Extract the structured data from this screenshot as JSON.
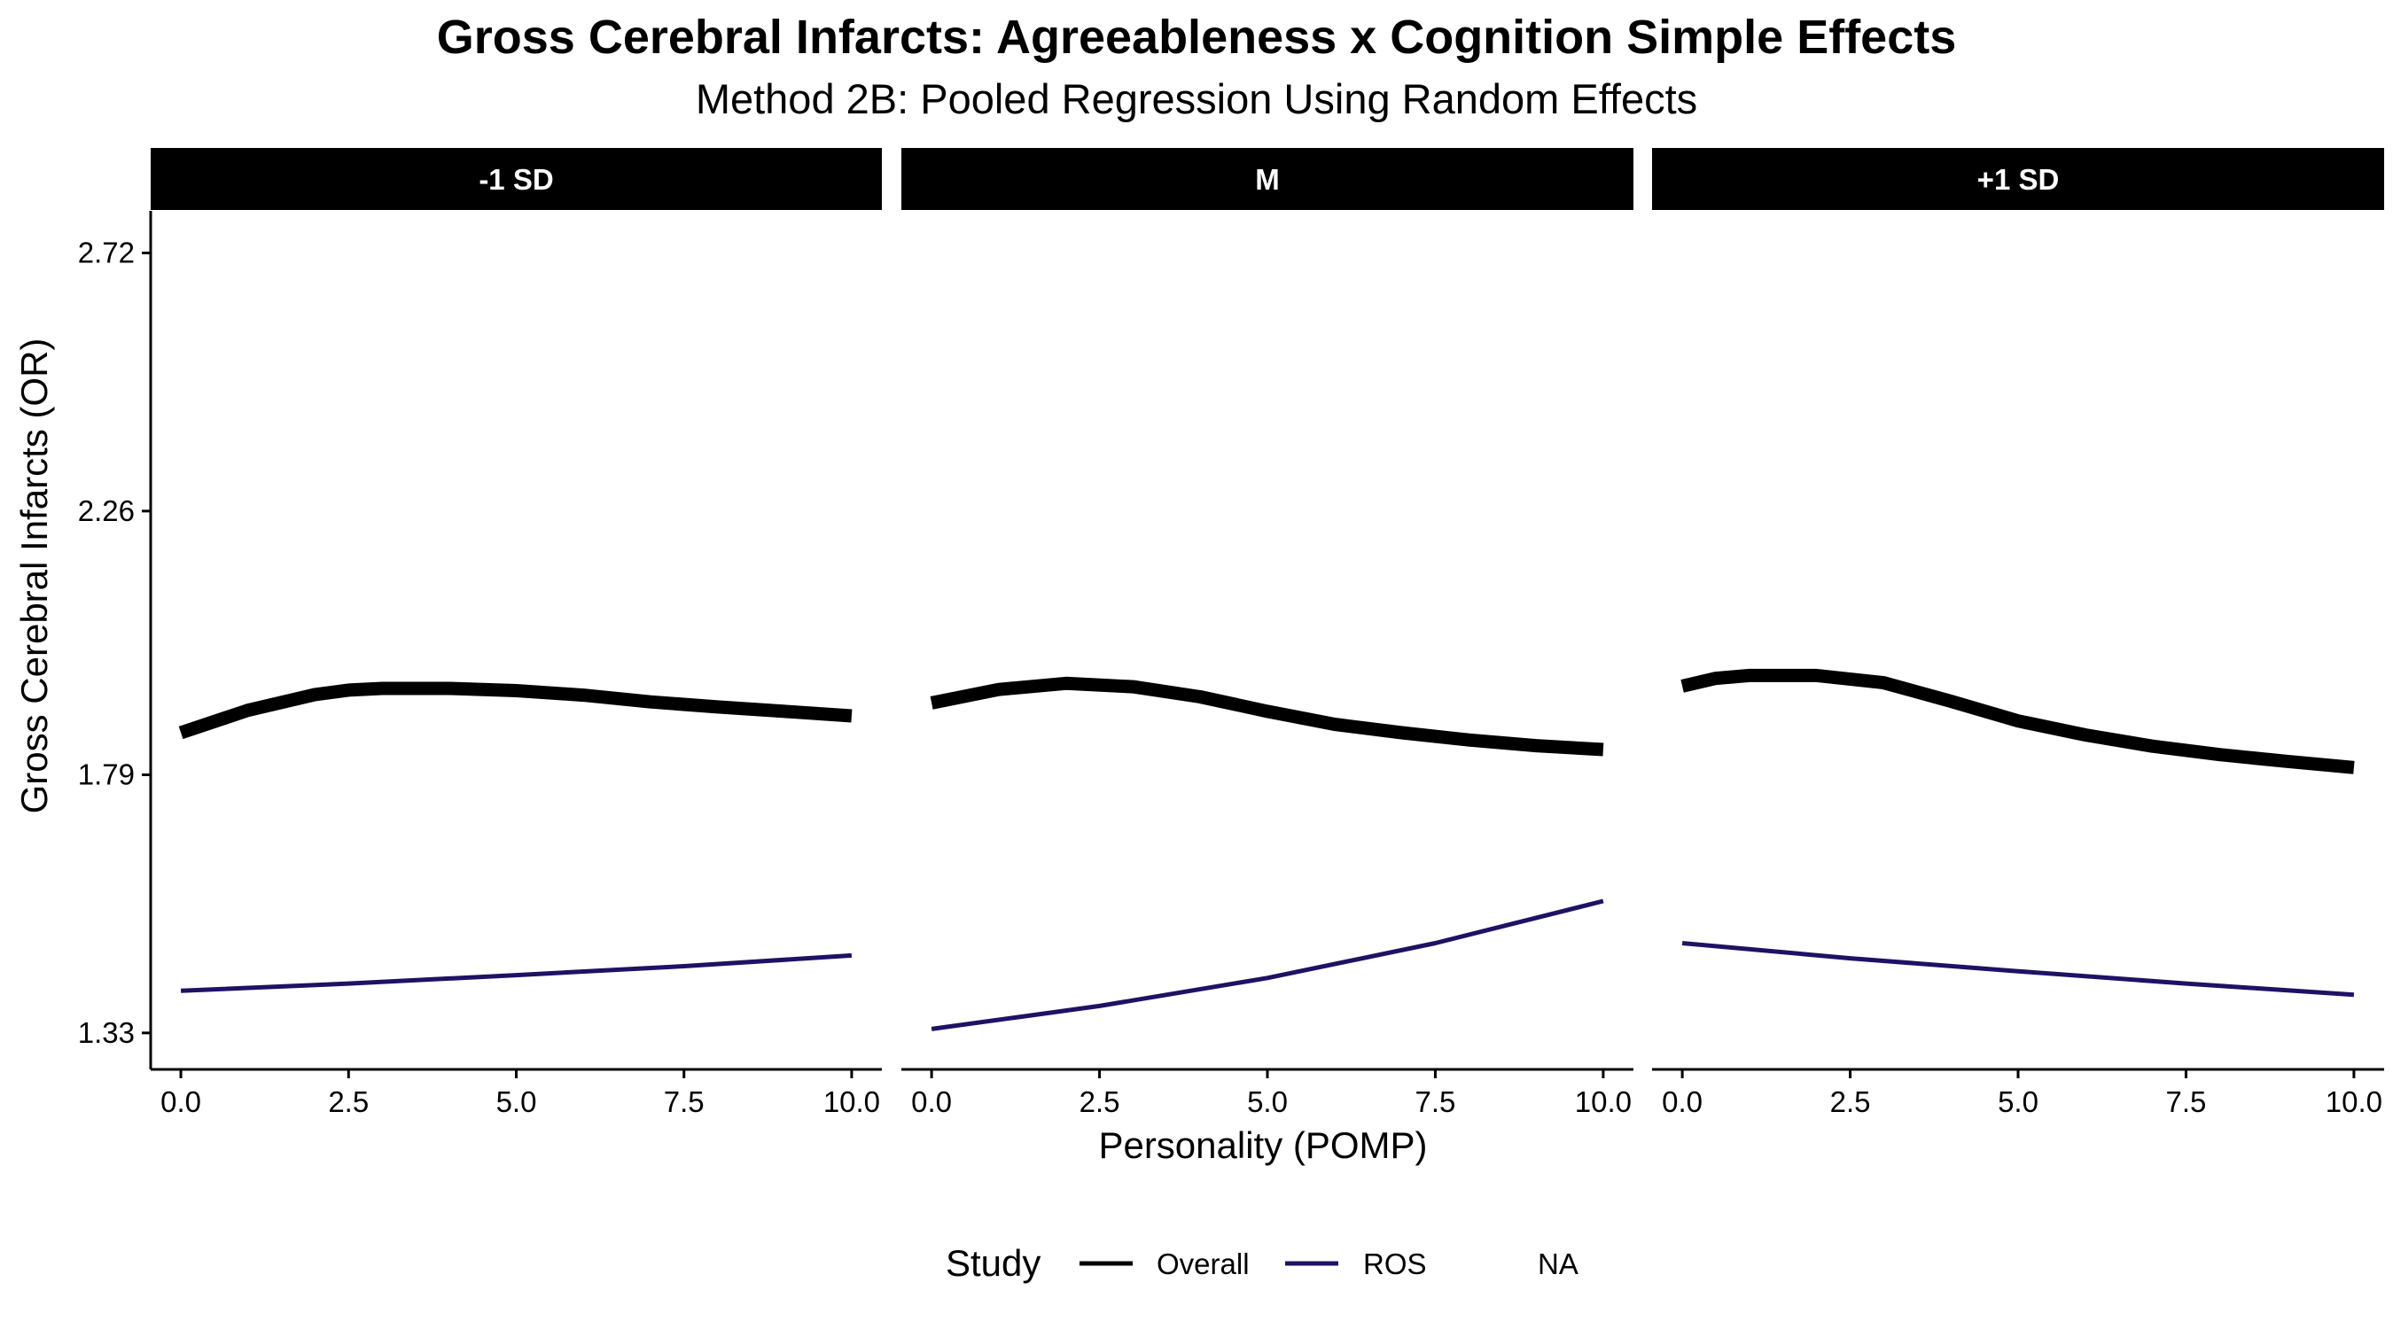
{
  "chart_data": {
    "type": "line",
    "title": "Gross Cerebral Infarcts: Agreeableness x Cognition Simple Effects",
    "subtitle": "Method 2B: Pooled Regression Using Random Effects",
    "xlabel": "Personality (POMP)",
    "ylabel": "Gross Cerebral Infarcts (OR)",
    "xlim": [
      -0.45,
      10.45
    ],
    "ylim": [
      1.265,
      2.795
    ],
    "x_ticks": [
      0,
      2.5,
      5,
      7.5,
      10
    ],
    "x_tick_labels": [
      "0.0",
      "2.5",
      "5.0",
      "7.5",
      "10.0"
    ],
    "y_ticks": [
      1.33,
      1.79,
      2.26,
      2.72
    ],
    "y_tick_labels": [
      "1.33",
      "1.79",
      "2.26",
      "2.72"
    ],
    "panels": [
      {
        "label": "-1 SD",
        "series": [
          {
            "name": "Overall",
            "x": [
              0,
              1,
              2,
              2.5,
              3,
              4,
              5,
              6,
              7,
              8,
              9,
              10
            ],
            "y": [
              1.865,
              1.905,
              1.933,
              1.941,
              1.944,
              1.944,
              1.94,
              1.932,
              1.92,
              1.911,
              1.903,
              1.895
            ]
          },
          {
            "name": "ROS",
            "x": [
              0,
              2.5,
              5,
              7.5,
              10
            ],
            "y": [
              1.405,
              1.418,
              1.433,
              1.449,
              1.468
            ]
          }
        ]
      },
      {
        "label": "M",
        "series": [
          {
            "name": "Overall",
            "x": [
              0,
              1,
              2,
              3,
              4,
              5,
              6,
              7,
              8,
              9,
              10
            ],
            "y": [
              1.918,
              1.942,
              1.953,
              1.947,
              1.929,
              1.903,
              1.88,
              1.865,
              1.852,
              1.842,
              1.835
            ]
          },
          {
            "name": "ROS",
            "x": [
              0,
              2.5,
              5,
              7.5,
              10
            ],
            "y": [
              1.337,
              1.378,
              1.428,
              1.49,
              1.565
            ]
          }
        ]
      },
      {
        "label": "+1 SD",
        "series": [
          {
            "name": "Overall",
            "x": [
              0,
              0.5,
              1,
              2,
              3,
              4,
              5,
              6,
              7,
              8,
              9,
              10
            ],
            "y": [
              1.948,
              1.962,
              1.967,
              1.967,
              1.954,
              1.921,
              1.886,
              1.861,
              1.841,
              1.826,
              1.814,
              1.803
            ]
          },
          {
            "name": "ROS",
            "x": [
              0,
              2.5,
              5,
              7.5,
              10
            ],
            "y": [
              1.49,
              1.463,
              1.44,
              1.418,
              1.398
            ]
          }
        ]
      }
    ],
    "legend": {
      "title": "Study",
      "position": "bottom",
      "entries": [
        {
          "name": "Overall",
          "color": "#000000"
        },
        {
          "name": "ROS",
          "color": "#1d1264"
        },
        {
          "name": "NA",
          "color": ""
        }
      ]
    },
    "colors": {
      "Overall": "#000000",
      "ROS": "#1d1264",
      "strip": "#000000"
    }
  }
}
